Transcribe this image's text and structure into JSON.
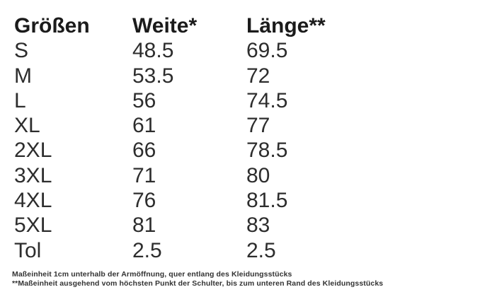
{
  "size_chart": {
    "headers": [
      "Größen",
      "Weite*",
      "Länge**"
    ],
    "rows": [
      [
        "S",
        "48.5",
        "69.5"
      ],
      [
        "M",
        "53.5",
        "72"
      ],
      [
        "L",
        "56",
        "74.5"
      ],
      [
        "XL",
        "61",
        "77"
      ],
      [
        "2XL",
        "66",
        "78.5"
      ],
      [
        "3XL",
        "71",
        "80"
      ],
      [
        "4XL",
        "76",
        "81.5"
      ],
      [
        "5XL",
        "81",
        "83"
      ],
      [
        "Tol",
        "2.5",
        "2.5"
      ]
    ]
  },
  "footnotes": [
    "Maßeinheit 1cm unterhalb der Armöffnung, quer entlang des Kleidungsstücks",
    "**Maßeinheit ausgehend vom höchsten Punkt der Schulter, bis zum unteren Rand des Kleidungsstücks"
  ],
  "colors": {
    "text": "#2d2d2d",
    "heading": "#1b1b1b",
    "footnote": "#333333",
    "background": "#ffffff"
  }
}
